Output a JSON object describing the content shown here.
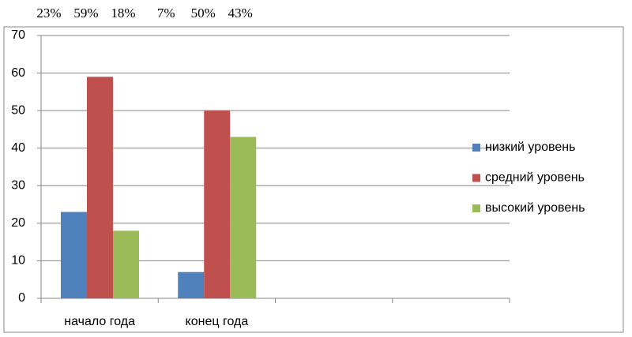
{
  "chart_data": {
    "type": "bar",
    "categories": [
      "начало года",
      "конец года",
      null,
      null
    ],
    "series": [
      {
        "name": "низкий уровень",
        "color": "#4f81bd",
        "values": [
          23,
          7,
          null,
          null
        ],
        "value_labels": [
          "23%",
          "7%",
          null,
          null
        ]
      },
      {
        "name": "средний уровень",
        "color": "#c0504d",
        "values": [
          59,
          50,
          null,
          null
        ],
        "value_labels": [
          "59%",
          "50%",
          null,
          null
        ]
      },
      {
        "name": "высокий уровень",
        "color": "#9bbb59",
        "values": [
          18,
          43,
          null,
          null
        ],
        "value_labels": [
          "18%",
          "43%",
          null,
          null
        ]
      }
    ],
    "ylim": [
      0,
      70
    ],
    "yticks": [
      0,
      10,
      20,
      30,
      40,
      50,
      60,
      70
    ],
    "grid": true,
    "legend": "right"
  }
}
